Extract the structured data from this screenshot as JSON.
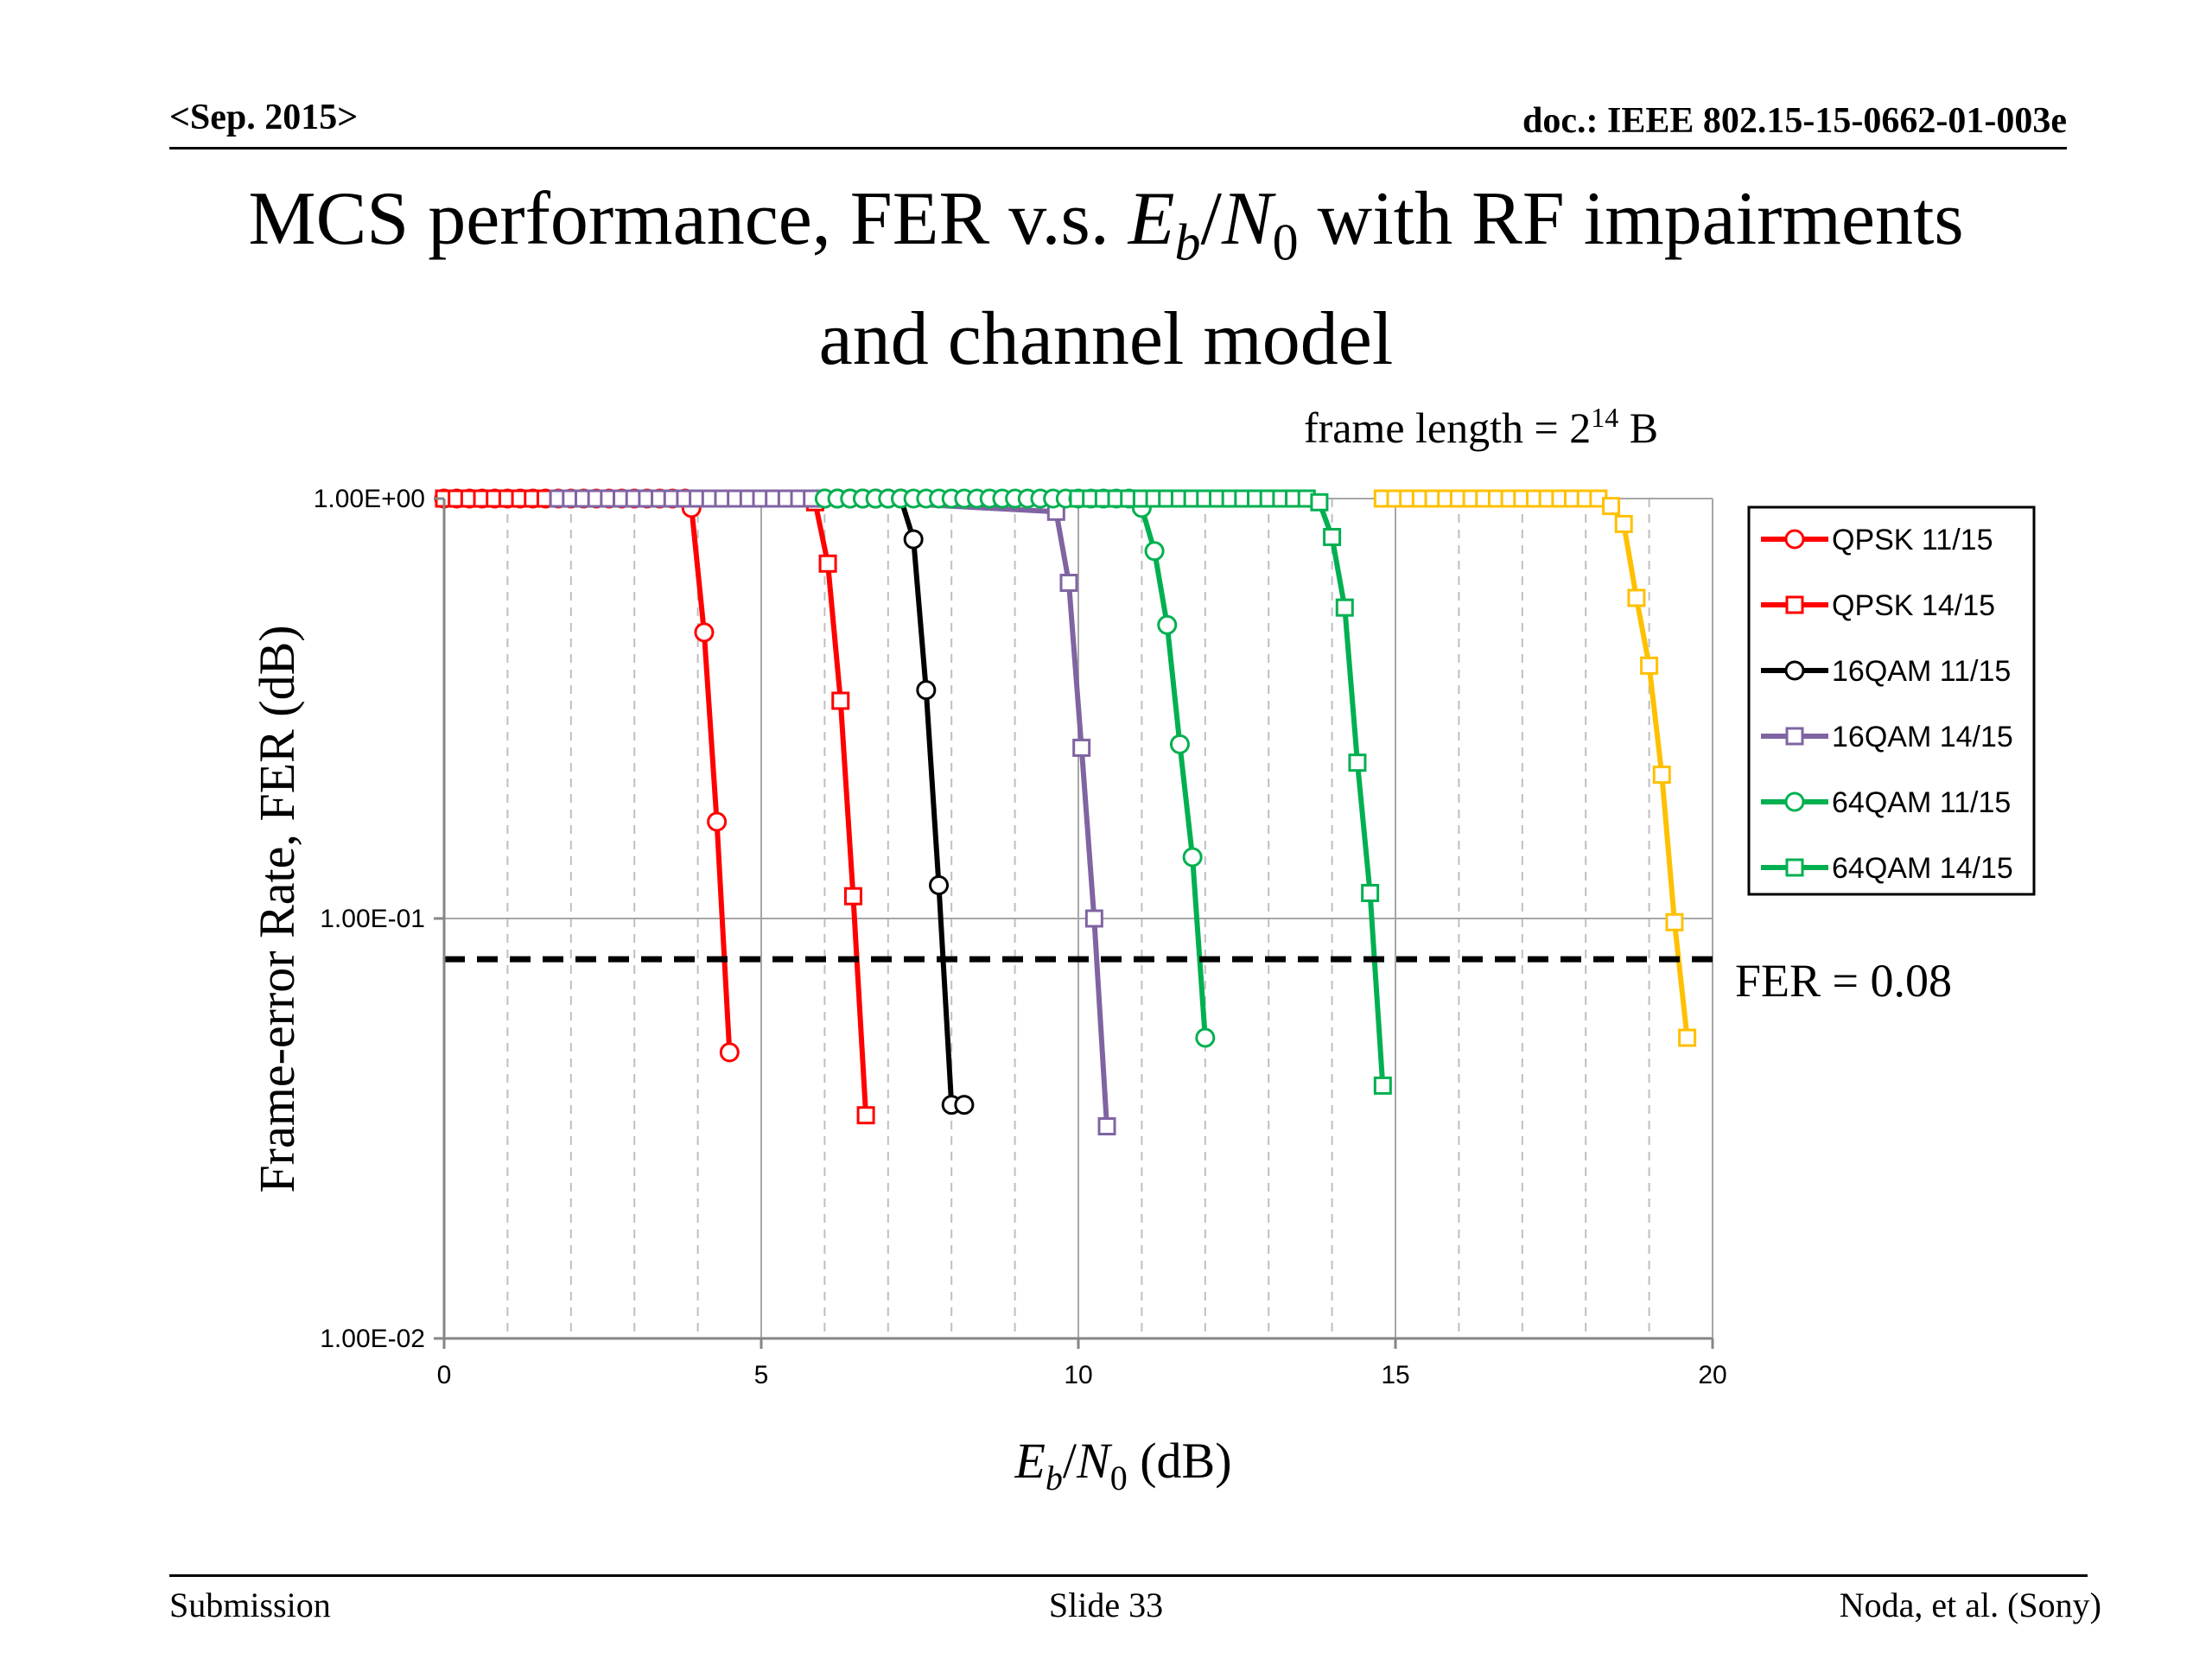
{
  "header": {
    "date": "<Sep. 2015>",
    "doc": "doc.: IEEE 802.15-15-0662-01-003e"
  },
  "title": {
    "part1": "MCS performance, FER v.s. ",
    "eb": "E",
    "eb_sub": "b",
    "slash": "/",
    "n0": "N",
    "n0_sub": "0",
    "part2": " with RF impairments",
    "line2": "and channel model"
  },
  "footer": {
    "left": "Submission",
    "center": "Slide 33",
    "right": "Noda, et al. (Sony)"
  },
  "chart_data": {
    "type": "line",
    "subtitle_text": "frame length = 2",
    "subtitle_sup": "14",
    "subtitle_unit": " B",
    "ylabel": "Frame-error Rate, FER (dB)",
    "xlabel_e": "E",
    "xlabel_b": "b",
    "xlabel_slash": "/",
    "xlabel_n": "N",
    "xlabel_0": "0",
    "xlabel_unit": " (dB)",
    "xlim": [
      0,
      20
    ],
    "ylim": [
      0.01,
      1
    ],
    "yscale": "log",
    "x_ticks": [
      "0",
      "5",
      "10",
      "15",
      "20"
    ],
    "y_ticks": [
      "1.00E+00",
      "1.00E-01",
      "1.00E-02"
    ],
    "grid": true,
    "legend_position": "top-right",
    "threshold": {
      "value": 0.08,
      "label": "FER = 0.08"
    },
    "series": [
      {
        "name": "QPSK 11/15",
        "color": "#ff0000",
        "marker": "circle",
        "flat_x": [
          0,
          0.2,
          0.4,
          0.6,
          0.8,
          1.0,
          1.2,
          1.4,
          1.6,
          1.8,
          2.0,
          2.2,
          2.4,
          2.6,
          2.8,
          3.0,
          3.2,
          3.4,
          3.6,
          3.8
        ],
        "x": [
          3.9,
          4.1,
          4.3,
          4.5
        ],
        "y": [
          0.95,
          0.48,
          0.17,
          0.048
        ]
      },
      {
        "name": "QPSK 14/15",
        "color": "#ff0000",
        "marker": "square",
        "flat_x": [
          0,
          0.2,
          0.4,
          0.6,
          0.8,
          1.0,
          1.2,
          1.4,
          1.6,
          1.8,
          2.0,
          2.2,
          2.4,
          2.6,
          2.8,
          3.0,
          3.2,
          3.4,
          3.6,
          3.8,
          4.0,
          4.2,
          4.4,
          4.6,
          4.8,
          5.0,
          5.2,
          5.4,
          5.6
        ],
        "x": [
          5.85,
          6.05,
          6.25,
          6.45,
          6.65
        ],
        "y": [
          0.98,
          0.7,
          0.33,
          0.113,
          0.034
        ]
      },
      {
        "name": "16QAM 11/15",
        "color": "#000000",
        "marker": "circle",
        "flat_x": [
          6.0,
          6.2,
          6.4,
          6.6,
          6.8,
          7.0,
          7.2
        ],
        "x": [
          7.4,
          7.6,
          7.8,
          8.0,
          8.2
        ],
        "y": [
          0.8,
          0.35,
          0.12,
          0.036,
          0.036
        ]
      },
      {
        "name": "16QAM 14/15",
        "color": "#8064a2",
        "marker": "square",
        "flat_x": [
          1.8,
          2.0,
          2.2,
          2.4,
          2.6,
          2.8,
          3.0,
          3.2,
          3.4,
          3.6,
          3.8,
          4.0,
          4.2,
          4.4,
          4.6,
          4.8,
          5.0,
          5.2,
          5.4,
          5.6,
          5.8
        ],
        "x": [
          9.65,
          9.85,
          10.05,
          10.25,
          10.45
        ],
        "y": [
          0.93,
          0.63,
          0.255,
          0.1,
          0.032
        ]
      },
      {
        "name": "64QAM 11/15",
        "color": "#00b050",
        "marker": "circle",
        "flat_x": [
          6.0,
          6.2,
          6.4,
          6.6,
          6.8,
          7.0,
          7.2,
          7.4,
          7.6,
          7.8,
          8.0,
          8.2,
          8.4,
          8.6,
          8.8,
          9.0,
          9.2,
          9.4,
          9.6,
          9.8,
          10.0,
          10.2,
          10.4,
          10.6,
          10.8
        ],
        "x": [
          11.0,
          11.2,
          11.4,
          11.6,
          11.8,
          12.0
        ],
        "y": [
          0.95,
          0.75,
          0.5,
          0.26,
          0.14,
          0.052
        ]
      },
      {
        "name": "64QAM 14/15",
        "color": "#00b050",
        "marker": "square",
        "flat_x": [
          10.0,
          10.2,
          10.4,
          10.6,
          10.8,
          11.0,
          11.2,
          11.4,
          11.6,
          11.8,
          12.0,
          12.2,
          12.4,
          12.6,
          12.8,
          13.0,
          13.2,
          13.4,
          13.6
        ],
        "x": [
          13.8,
          14.0,
          14.2,
          14.4,
          14.6,
          14.8
        ],
        "y": [
          0.98,
          0.81,
          0.55,
          0.235,
          0.115,
          0.04
        ]
      },
      {
        "name": "",
        "color": "#ffc000",
        "marker": "square",
        "flat_x": [
          14.8,
          15.0,
          15.2,
          15.4,
          15.6,
          15.8,
          16.0,
          16.2,
          16.4,
          16.6,
          16.8,
          17.0,
          17.2,
          17.4,
          17.6,
          17.8,
          18.0,
          18.2
        ],
        "x": [
          18.4,
          18.6,
          18.8,
          19.0,
          19.2,
          19.4,
          19.6
        ],
        "y": [
          0.96,
          0.87,
          0.58,
          0.4,
          0.22,
          0.098,
          0.052
        ]
      }
    ]
  }
}
